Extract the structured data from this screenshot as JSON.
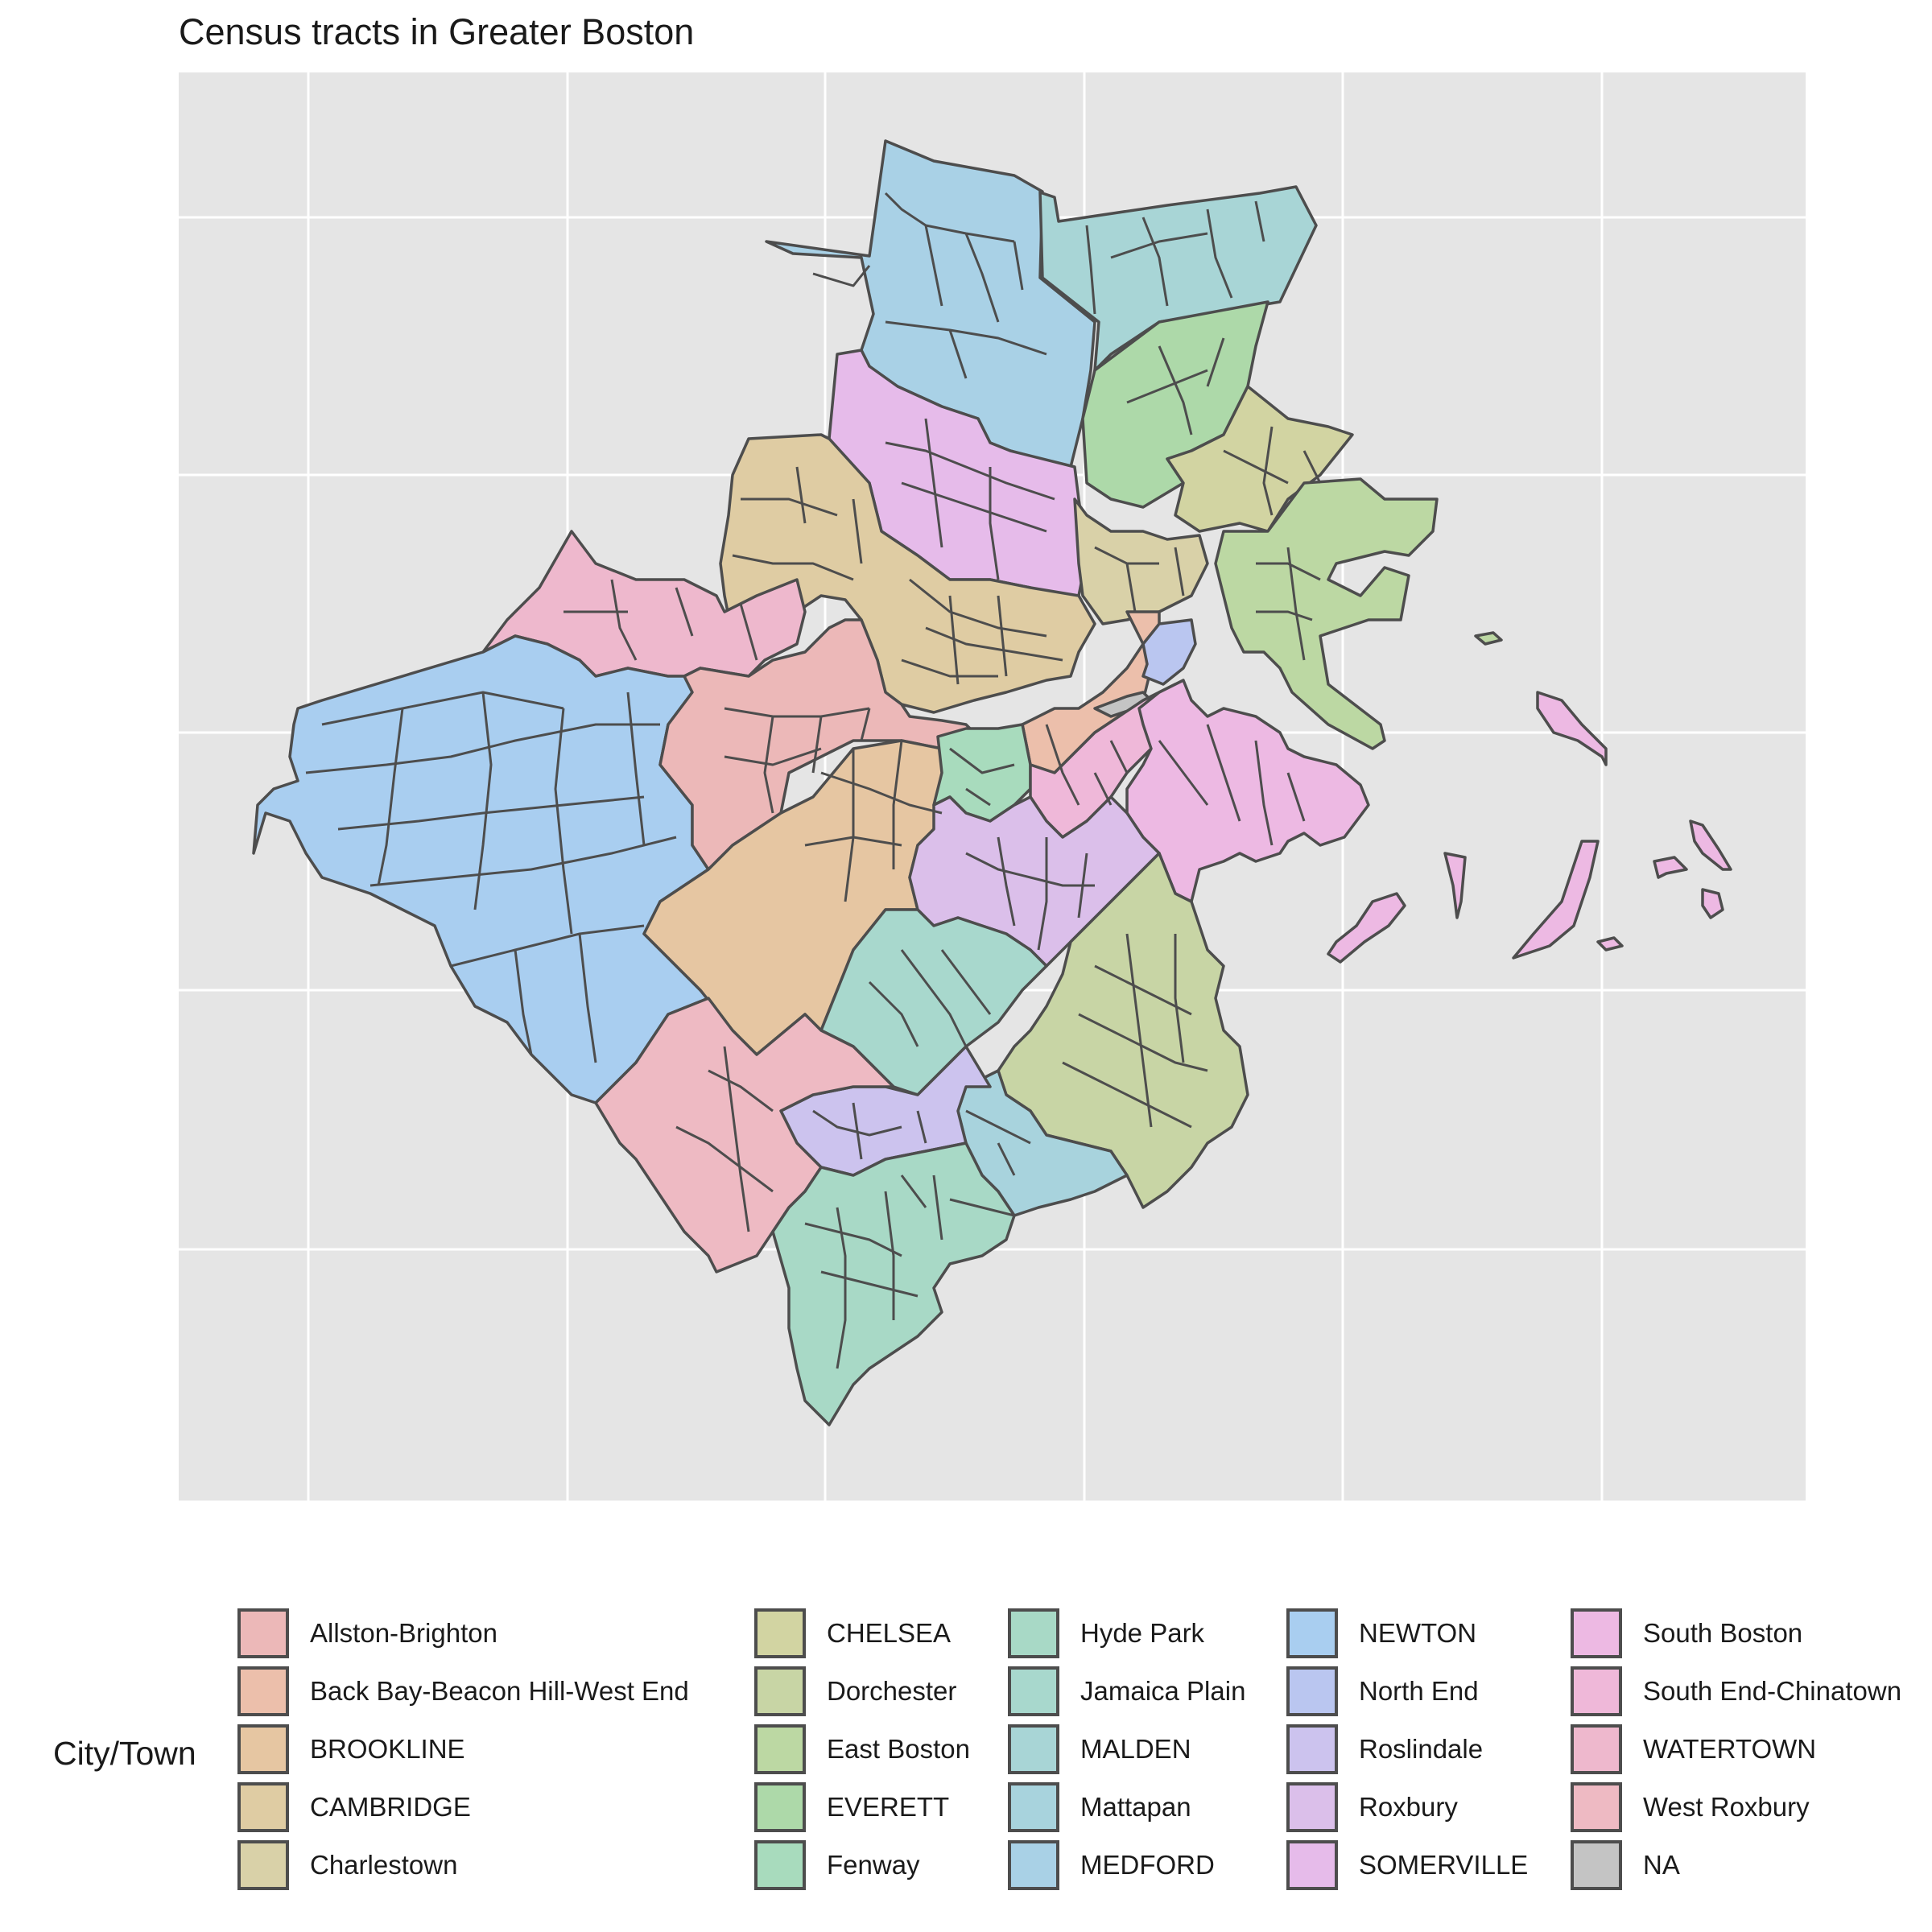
{
  "title": "Census tracts in Greater Boston",
  "legend": {
    "title": "City/Town",
    "items": [
      {
        "label": "Allston-Brighton",
        "color": "#ecb8b8"
      },
      {
        "label": "Back Bay-Beacon Hill-West End",
        "color": "#ecbfab"
      },
      {
        "label": "BROOKLINE",
        "color": "#e6c6a2"
      },
      {
        "label": "CAMBRIDGE",
        "color": "#dfcca3"
      },
      {
        "label": "Charlestown",
        "color": "#d9d1a8"
      },
      {
        "label": "CHELSEA",
        "color": "#d2d4a2"
      },
      {
        "label": "Dorchester",
        "color": "#c8d5a5"
      },
      {
        "label": "East Boston",
        "color": "#bcd8a3"
      },
      {
        "label": "EVERETT",
        "color": "#add9a9"
      },
      {
        "label": "Fenway",
        "color": "#a8dbbd"
      },
      {
        "label": "Hyde Park",
        "color": "#a8d9c6"
      },
      {
        "label": "Jamaica Plain",
        "color": "#a8d8cd"
      },
      {
        "label": "MALDEN",
        "color": "#a8d5d6"
      },
      {
        "label": "Mattapan",
        "color": "#a8d3dd"
      },
      {
        "label": "MEDFORD",
        "color": "#a9d1e6"
      },
      {
        "label": "NEWTON",
        "color": "#a9cef0"
      },
      {
        "label": "North End",
        "color": "#bac6f0"
      },
      {
        "label": "Roslindale",
        "color": "#ccc3ee"
      },
      {
        "label": "Roxbury",
        "color": "#dbbfea"
      },
      {
        "label": "SOMERVILLE",
        "color": "#e6bbea"
      },
      {
        "label": "South Boston",
        "color": "#edb9e3"
      },
      {
        "label": "South End-Chinatown",
        "color": "#efb8d9"
      },
      {
        "label": "WATERTOWN",
        "color": "#eeb8cd"
      },
      {
        "label": "West Roxbury",
        "color": "#eebac3"
      },
      {
        "label": "NA",
        "color": "#c4c4c4"
      }
    ]
  },
  "map": {
    "panel_background": "#e5e5e5",
    "gridline_color": "#ffffff",
    "border_color": "#4d4d4d",
    "regions": [
      {
        "name": "MEDFORD",
        "color": "#a9d1e6"
      },
      {
        "name": "MALDEN",
        "color": "#a8d5d6"
      },
      {
        "name": "EVERETT",
        "color": "#add9a9"
      },
      {
        "name": "CHELSEA",
        "color": "#d2d4a2"
      },
      {
        "name": "East Boston",
        "color": "#bcd8a3"
      },
      {
        "name": "SOMERVILLE",
        "color": "#e6bbea"
      },
      {
        "name": "CAMBRIDGE",
        "color": "#dfcca3"
      },
      {
        "name": "Charlestown",
        "color": "#d9d1a8"
      },
      {
        "name": "WATERTOWN",
        "color": "#eeb8cd"
      },
      {
        "name": "NEWTON",
        "color": "#a9cef0"
      },
      {
        "name": "Allston-Brighton",
        "color": "#ecb8b8"
      },
      {
        "name": "BROOKLINE",
        "color": "#e6c6a2"
      },
      {
        "name": "Back Bay-Beacon Hill-West End",
        "color": "#ecbfab"
      },
      {
        "name": "North End",
        "color": "#bac6f0"
      },
      {
        "name": "NA",
        "color": "#c4c4c4"
      },
      {
        "name": "Fenway",
        "color": "#a8dbbd"
      },
      {
        "name": "South End-Chinatown",
        "color": "#efb8d9"
      },
      {
        "name": "South Boston",
        "color": "#edb9e3"
      },
      {
        "name": "Roxbury",
        "color": "#dbbfea"
      },
      {
        "name": "Jamaica Plain",
        "color": "#a8d8cd"
      },
      {
        "name": "Dorchester",
        "color": "#c8d5a5"
      },
      {
        "name": "Mattapan",
        "color": "#a8d3dd"
      },
      {
        "name": "Roslindale",
        "color": "#ccc3ee"
      },
      {
        "name": "West Roxbury",
        "color": "#eebac3"
      },
      {
        "name": "Hyde Park",
        "color": "#a8d9c6"
      },
      {
        "name": "South Boston islands",
        "color": "#edb9e3"
      },
      {
        "name": "East Boston island",
        "color": "#bcd8a3"
      }
    ]
  }
}
